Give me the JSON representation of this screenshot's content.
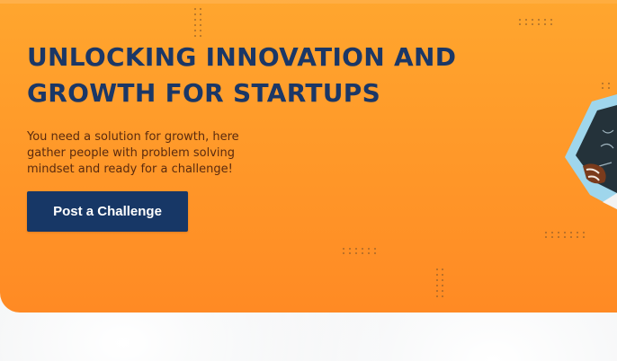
{
  "hero": {
    "headline_line1": "UNLOCKING INNOVATION AND",
    "headline_line2": "GROWTH FOR STARTUPS",
    "subtext": "You need a solution for growth, here gather people with problem solving mindset and ready for a challenge!",
    "cta_label": "Post a Challenge"
  },
  "colors": {
    "hero_orange": "#ff9b2a",
    "headline_navy": "#1b3766",
    "cta_navy": "#173766",
    "subtext_brown": "#5a2a0e"
  },
  "decor": {
    "illustration": "person-with-tablet-illustration",
    "patterns": [
      "dot-grid-pattern"
    ]
  }
}
